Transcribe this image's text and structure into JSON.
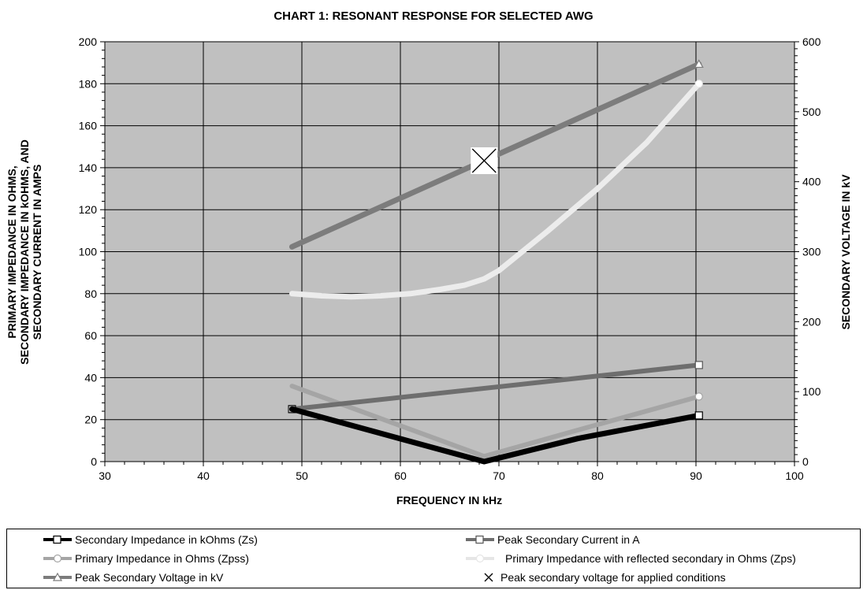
{
  "chart_data": {
    "type": "line",
    "title": "CHART 1:  RESONANT RESPONSE FOR SELECTED AWG",
    "xlabel": "FREQUENCY IN kHz",
    "ylabel_left": [
      "PRIMARY IMPEDANCE IN OHMS,",
      "SECONDARY IMPEDANCE IN kOHMS, AND",
      "SECONDARY CURRENT IN AMPS"
    ],
    "ylabel_right": "SECONDARY VOLTAGE IN kV",
    "xlim": [
      30,
      100
    ],
    "ylim_left": [
      0,
      200
    ],
    "ylim_right": [
      0,
      600
    ],
    "x_ticks": [
      "30",
      "40",
      "50",
      "60",
      "70",
      "80",
      "90",
      "100"
    ],
    "y_left_ticks": [
      "0",
      "20",
      "40",
      "60",
      "80",
      "100",
      "120",
      "140",
      "160",
      "180",
      "200"
    ],
    "y_right_ticks": [
      "0",
      "100",
      "200",
      "300",
      "400",
      "500",
      "600"
    ],
    "grid": true,
    "legend_position": "bottom",
    "series": [
      {
        "name": "Secondary Impedance in kOhms (Zs)",
        "axis": "left",
        "color": "#000000",
        "marker": "square",
        "points": [
          [
            49,
            25
          ],
          [
            68.5,
            0
          ],
          [
            78,
            11
          ],
          [
            90.3,
            22
          ]
        ]
      },
      {
        "name": "Peak Secondary Current in A",
        "axis": "left",
        "color": "#6e6e6e",
        "marker": "square",
        "points": [
          [
            49,
            25
          ],
          [
            90.3,
            46
          ]
        ]
      },
      {
        "name": "Primary Impedance in Ohms (Zpss)",
        "axis": "left",
        "color": "#a5a5a5",
        "marker": "circle",
        "points": [
          [
            49,
            36
          ],
          [
            68.5,
            2.5
          ],
          [
            78,
            15
          ],
          [
            90.3,
            31
          ]
        ]
      },
      {
        "name": "Primary Impedance with reflected secondary in Ohms (Zps)",
        "axis": "left",
        "color": "#ececec",
        "marker": "circle",
        "points": [
          [
            49,
            80
          ],
          [
            52,
            79
          ],
          [
            55,
            78.5
          ],
          [
            58,
            79
          ],
          [
            61,
            80
          ],
          [
            64,
            82
          ],
          [
            66.5,
            84
          ],
          [
            68.5,
            87
          ],
          [
            70,
            91
          ],
          [
            75,
            110
          ],
          [
            80,
            130
          ],
          [
            85,
            152
          ],
          [
            90.3,
            180
          ]
        ]
      },
      {
        "name": "Peak Secondary Voltage in kV",
        "axis": "right",
        "color": "#7c7c7c",
        "marker": "triangle",
        "points": [
          [
            49,
            307
          ],
          [
            90.3,
            568
          ]
        ]
      },
      {
        "name": "Peak secondary voltage for applied conditions",
        "axis": "right",
        "color": "#000000",
        "marker": "x",
        "points": [
          [
            68.5,
            430
          ]
        ]
      }
    ]
  }
}
